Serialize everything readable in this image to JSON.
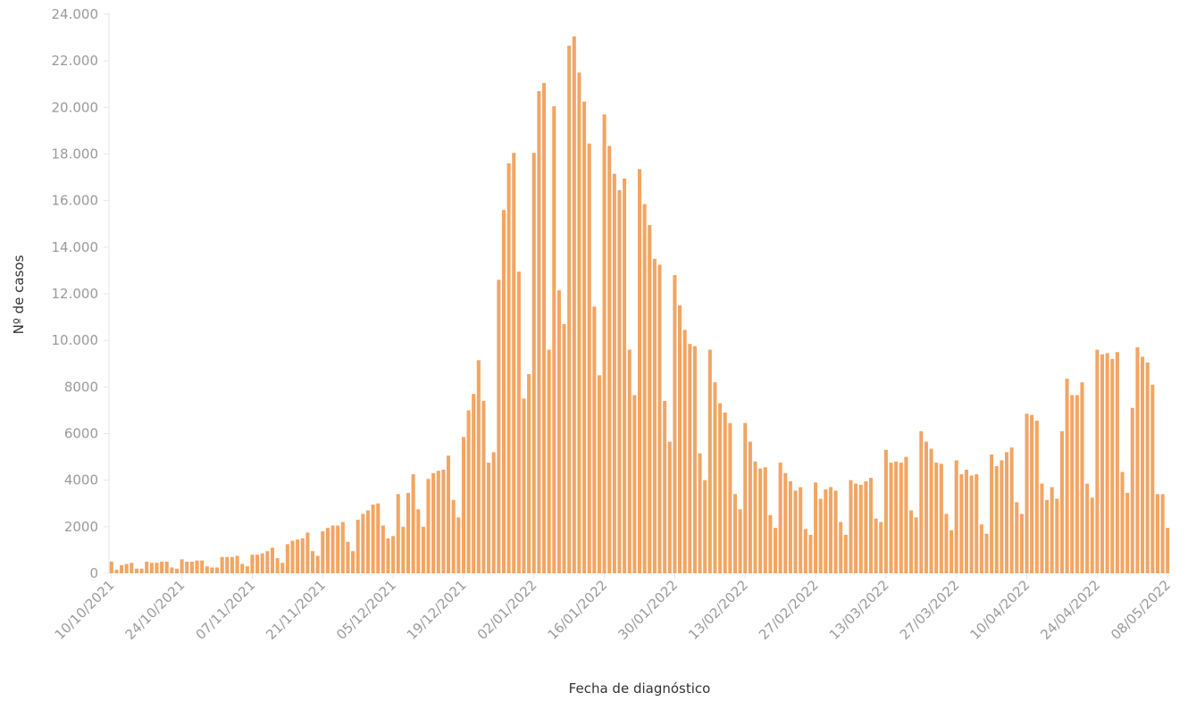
{
  "chart_data": {
    "type": "bar",
    "x_label": "Fecha de diagnóstico",
    "y_label": "Nº de casos",
    "color": "#f2a563",
    "ylim": [
      0,
      24000
    ],
    "yticks": [
      0,
      2000,
      4000,
      6000,
      8000,
      {
        "value": 10000,
        "label": "10.000"
      },
      {
        "value": 12000,
        "label": "12.000"
      },
      {
        "value": 14000,
        "label": "14.000"
      },
      {
        "value": 16000,
        "label": "16.000"
      },
      {
        "value": 18000,
        "label": "18.000"
      },
      {
        "value": 20000,
        "label": "20.000"
      },
      {
        "value": 22000,
        "label": "22.000"
      },
      {
        "value": 24000,
        "label": "24.000"
      }
    ],
    "categories": [
      "10/10/2021",
      null,
      null,
      null,
      null,
      null,
      null,
      null,
      null,
      null,
      null,
      null,
      null,
      null,
      "24/10/2021",
      null,
      null,
      null,
      null,
      null,
      null,
      null,
      null,
      null,
      null,
      null,
      null,
      null,
      "07/11/2021",
      null,
      null,
      null,
      null,
      null,
      null,
      null,
      null,
      null,
      null,
      null,
      null,
      null,
      "21/11/2021",
      null,
      null,
      null,
      null,
      null,
      null,
      null,
      null,
      null,
      null,
      null,
      null,
      null,
      "05/12/2021",
      null,
      null,
      null,
      null,
      null,
      null,
      null,
      null,
      null,
      null,
      null,
      null,
      null,
      "19/12/2021",
      null,
      null,
      null,
      null,
      null,
      null,
      null,
      null,
      null,
      null,
      null,
      null,
      null,
      "02/01/2022",
      null,
      null,
      null,
      null,
      null,
      null,
      null,
      null,
      null,
      null,
      null,
      null,
      null,
      "16/01/2022",
      null,
      null,
      null,
      null,
      null,
      null,
      null,
      null,
      null,
      null,
      null,
      null,
      null,
      "30/01/2022",
      null,
      null,
      null,
      null,
      null,
      null,
      null,
      null,
      null,
      null,
      null,
      null,
      null,
      "13/02/2022",
      null,
      null,
      null,
      null,
      null,
      null,
      null,
      null,
      null,
      null,
      null,
      null,
      null,
      "27/02/2022",
      null,
      null,
      null,
      null,
      null,
      null,
      null,
      null,
      null,
      null,
      null,
      null,
      null,
      "13/03/2022",
      null,
      null,
      null,
      null,
      null,
      null,
      null,
      null,
      null,
      null,
      null,
      null,
      null,
      "27/03/2022",
      null,
      null,
      null,
      null,
      null,
      null,
      null,
      null,
      null,
      null,
      null,
      null,
      null,
      "10/04/2022",
      null,
      null,
      null,
      null,
      null,
      null,
      null,
      null,
      null,
      null,
      null,
      null,
      null,
      "24/04/2022",
      null,
      null,
      null,
      null,
      null,
      null,
      null,
      null,
      null,
      null,
      null,
      null,
      null,
      "08/05/2022"
    ],
    "values": [
      500,
      150,
      350,
      400,
      450,
      200,
      200,
      500,
      450,
      450,
      500,
      500,
      250,
      200,
      600,
      500,
      500,
      550,
      550,
      300,
      250,
      250,
      700,
      700,
      700,
      750,
      400,
      300,
      800,
      800,
      850,
      950,
      1100,
      650,
      450,
      1250,
      1400,
      1450,
      1500,
      1750,
      950,
      750,
      1800,
      1950,
      2050,
      2050,
      2200,
      1350,
      950,
      2300,
      2550,
      2700,
      2950,
      3000,
      2050,
      1500,
      1600,
      3400,
      2000,
      3450,
      4250,
      2750,
      2000,
      4050,
      4300,
      4400,
      4450,
      5050,
      3150,
      2400,
      5850,
      7000,
      7700,
      9150,
      7400,
      4750,
      5200,
      12600,
      15600,
      17600,
      18050,
      12950,
      7500,
      8550,
      18050,
      20700,
      21050,
      9600,
      20050,
      12150,
      10700,
      22650,
      23050,
      21500,
      20250,
      18450,
      11450,
      8500,
      19700,
      18350,
      17150,
      16450,
      16950,
      9600,
      7650,
      17350,
      15850,
      14950,
      13500,
      13250,
      7400,
      5650,
      12800,
      11500,
      10450,
      9850,
      9750,
      5150,
      4000,
      9600,
      8200,
      7300,
      6900,
      6450,
      3400,
      2750,
      6450,
      5650,
      4800,
      4500,
      4550,
      2500,
      1950,
      4750,
      4300,
      3950,
      3550,
      3700,
      1900,
      1650,
      3900,
      3200,
      3600,
      3700,
      3550,
      2200,
      1650,
      4000,
      3850,
      3800,
      3950,
      4100,
      2350,
      2200,
      5300,
      4750,
      4800,
      4750,
      5000,
      2700,
      2400,
      6100,
      5650,
      5350,
      4750,
      4700,
      2550,
      1850,
      4850,
      4250,
      4450,
      4200,
      4250,
      2100,
      1700,
      5100,
      4600,
      4850,
      5200,
      5400,
      3050,
      2550,
      6850,
      6800,
      6550,
      3850,
      3150,
      3700,
      3200,
      6100,
      8350,
      7650,
      7650,
      8200,
      3850,
      3250,
      9600,
      9400,
      9450,
      9200,
      9500,
      4350,
      3450,
      7100,
      9700,
      9300,
      9050,
      8100,
      3400,
      3400,
      1950
    ]
  }
}
